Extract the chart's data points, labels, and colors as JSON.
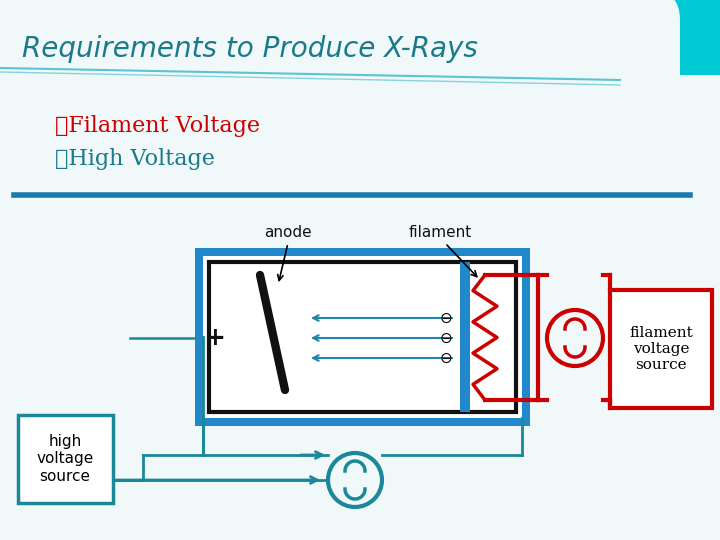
{
  "title": "Requirements to Produce X-Rays",
  "title_color": "#1a7a8a",
  "title_fontsize": 20,
  "bullet1": "❧Filament Voltage",
  "bullet2": "❧High Voltage",
  "bullet1_color": "#cc0000",
  "bullet2_color": "#1a7a8a",
  "bullet_fontsize": 16,
  "bg_top_color": "#00c8d4",
  "bg_main_color": "#f0f8fa",
  "separator_color": "#1a7aaa",
  "box_blue_color": "#2288cc",
  "box_black_color": "#111111",
  "electron_color": "#2288aa",
  "filament_zigzag_color": "#cc0000",
  "hv_source_color": "#1a8899",
  "fv_source_color": "#cc0000",
  "fv_box_color": "#cc0000",
  "hv_box_color": "#1a8899",
  "plus_color": "#111111",
  "wire_hv_color": "#1a8899",
  "wire_fv_color": "#cc0000",
  "label_color": "#111111",
  "label_fontsize": 11
}
